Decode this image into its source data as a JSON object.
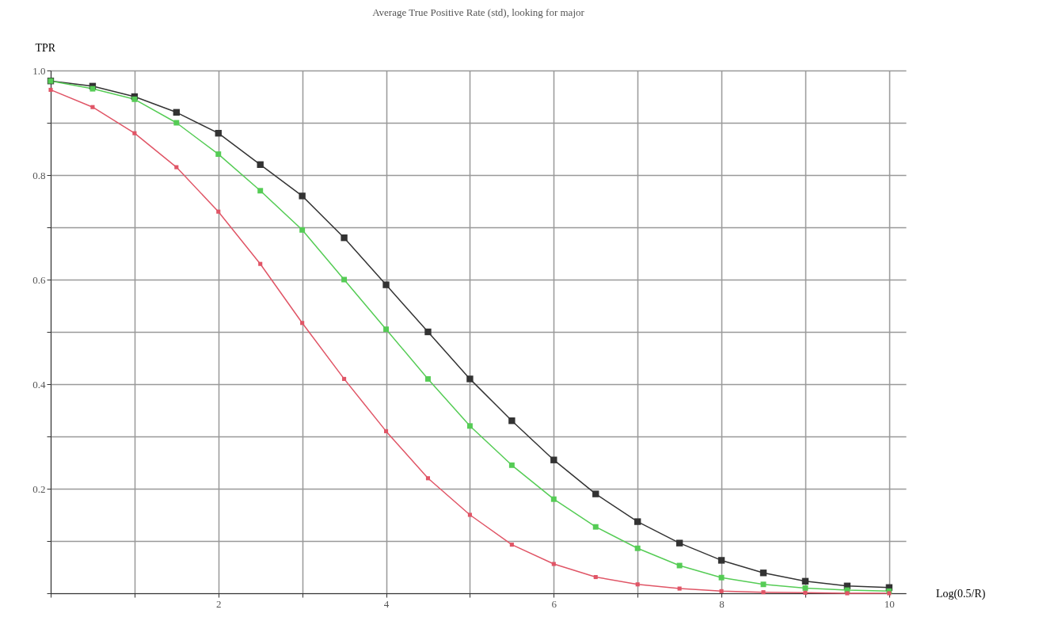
{
  "chart_data": {
    "type": "line",
    "title": "Average True Positive Rate (std), looking for major",
    "xlabel": "Log(0.5/R)",
    "ylabel": "TPR",
    "x": [
      0,
      0.5,
      1,
      1.5,
      2,
      2.5,
      3,
      3.5,
      4,
      4.5,
      5,
      5.5,
      6,
      6.5,
      7,
      7.5,
      8,
      8.5,
      9,
      9.5,
      10
    ],
    "series": [
      {
        "color": "#333333",
        "values": [
          0.98,
          0.97,
          0.95,
          0.92,
          0.88,
          0.82,
          0.76,
          0.68,
          0.59,
          0.5,
          0.41,
          0.33,
          0.255,
          0.19,
          0.137,
          0.096,
          0.063,
          0.039,
          0.023,
          0.014,
          0.011
        ]
      },
      {
        "color": "#55cc55",
        "values": [
          0.98,
          0.965,
          0.945,
          0.9,
          0.84,
          0.77,
          0.695,
          0.6,
          0.505,
          0.41,
          0.32,
          0.245,
          0.18,
          0.127,
          0.086,
          0.053,
          0.03,
          0.017,
          0.01,
          0.006,
          0.004
        ]
      },
      {
        "color": "#e05566",
        "values": [
          0.963,
          0.93,
          0.88,
          0.815,
          0.73,
          0.63,
          0.517,
          0.41,
          0.31,
          0.22,
          0.15,
          0.093,
          0.056,
          0.031,
          0.017,
          0.009,
          0.004,
          0.002,
          0.001,
          0,
          0
        ]
      }
    ],
    "xlim": [
      0,
      10.2
    ],
    "ylim": [
      0,
      1
    ],
    "xticks": [
      {
        "value": 0,
        "label": null
      },
      {
        "value": 1,
        "label": null
      },
      2,
      {
        "value": 3,
        "label": null
      },
      4,
      {
        "value": 5,
        "label": null
      },
      6,
      {
        "value": 7,
        "label": null
      },
      8,
      {
        "value": 9,
        "label": null
      },
      10
    ],
    "yticks": [
      {
        "value": 0,
        "label": null
      },
      {
        "value": 0.1,
        "label": null
      },
      0.2,
      {
        "value": 0.3,
        "label": null
      },
      0.4,
      {
        "value": 0.5,
        "label": null
      },
      0.6,
      {
        "value": 0.7,
        "label": null
      },
      0.8,
      {
        "value": 0.9,
        "label": null
      },
      {
        "value": 1,
        "label": "1.0"
      }
    ],
    "grid": true,
    "marker": "square",
    "line_style": "solid",
    "legend": false
  }
}
